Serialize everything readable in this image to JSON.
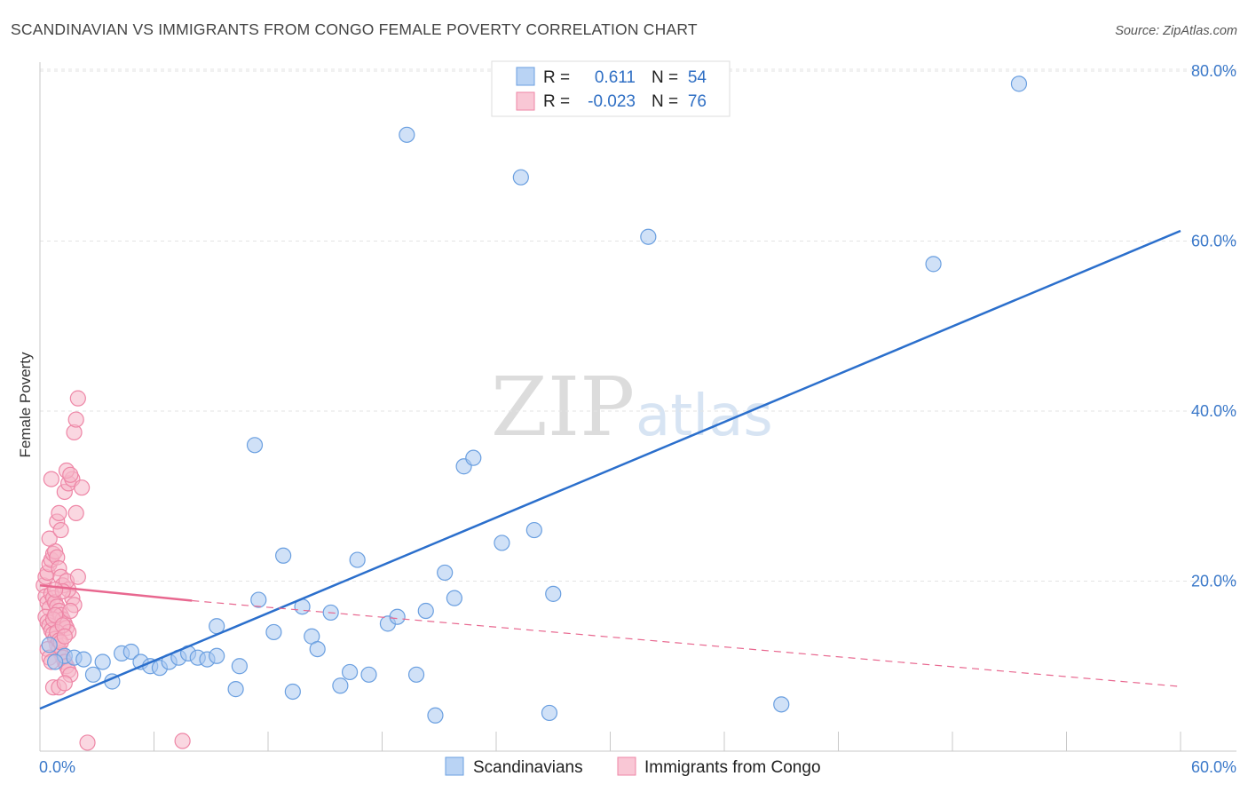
{
  "title": "SCANDINAVIAN VS IMMIGRANTS FROM CONGO FEMALE POVERTY CORRELATION CHART",
  "source": "Source: ZipAtlas.com",
  "watermark": {
    "zip": "ZIP",
    "atlas": "atlas"
  },
  "legend_top": {
    "scandinavians": {
      "r_label": "R =",
      "r_value": "0.611",
      "n_label": "N =",
      "n_value": "54"
    },
    "congo": {
      "r_label": "R =",
      "r_value": "-0.023",
      "n_label": "N =",
      "n_value": "76"
    }
  },
  "legend_bottom": {
    "scandinavians": "Scandinavians",
    "congo": "Immigrants from Congo"
  },
  "colors": {
    "blue_fill": "#a9c9f0",
    "blue_stroke": "#6a9fe0",
    "blue_line": "#2b6fcc",
    "pink_fill": "#f6b7c8",
    "pink_stroke": "#ee86a6",
    "pink_line": "#e8678f",
    "grid": "#e3e3e3",
    "axis": "#c8c8c8",
    "tick_text": "#3a78c9"
  },
  "chart_data": {
    "type": "scatter",
    "title": "SCANDINAVIAN VS IMMIGRANTS FROM CONGO FEMALE POVERTY CORRELATION CHART",
    "xlabel": "",
    "ylabel": "Female Poverty",
    "xlim": [
      0,
      60
    ],
    "ylim": [
      0,
      80
    ],
    "x_tick_labels": [
      "0.0%",
      "60.0%"
    ],
    "y_ticks": [
      20,
      40,
      60,
      80
    ],
    "y_tick_labels": [
      "20.0%",
      "40.0%",
      "60.0%",
      "80.0%"
    ],
    "grid": true,
    "series": [
      {
        "name": "Scandinavians",
        "r": 0.611,
        "n": 54,
        "trend": {
          "x": [
            0,
            60
          ],
          "y": [
            5.0,
            61.2
          ]
        },
        "points": [
          [
            0.5,
            12.5
          ],
          [
            1.3,
            11.2
          ],
          [
            1.8,
            11.0
          ],
          [
            2.3,
            10.8
          ],
          [
            2.8,
            9.0
          ],
          [
            3.3,
            10.5
          ],
          [
            3.8,
            8.2
          ],
          [
            4.3,
            11.5
          ],
          [
            4.8,
            11.7
          ],
          [
            5.3,
            10.5
          ],
          [
            5.8,
            10.0
          ],
          [
            6.3,
            9.8
          ],
          [
            6.8,
            10.5
          ],
          [
            7.3,
            11.0
          ],
          [
            7.8,
            11.5
          ],
          [
            8.3,
            11.0
          ],
          [
            8.8,
            10.8
          ],
          [
            9.3,
            11.2
          ],
          [
            9.3,
            14.7
          ],
          [
            10.3,
            7.3
          ],
          [
            10.5,
            10.0
          ],
          [
            11.3,
            36.0
          ],
          [
            11.5,
            17.8
          ],
          [
            12.3,
            14.0
          ],
          [
            12.8,
            23.0
          ],
          [
            13.3,
            7.0
          ],
          [
            13.8,
            17.0
          ],
          [
            14.3,
            13.5
          ],
          [
            14.6,
            12.0
          ],
          [
            15.3,
            16.3
          ],
          [
            15.8,
            7.7
          ],
          [
            16.3,
            9.3
          ],
          [
            16.7,
            22.5
          ],
          [
            17.3,
            9.0
          ],
          [
            18.3,
            15.0
          ],
          [
            18.8,
            15.8
          ],
          [
            19.3,
            72.5
          ],
          [
            19.8,
            9.0
          ],
          [
            20.3,
            16.5
          ],
          [
            20.8,
            4.2
          ],
          [
            21.3,
            21.0
          ],
          [
            21.8,
            18.0
          ],
          [
            22.3,
            33.5
          ],
          [
            22.8,
            34.5
          ],
          [
            24.3,
            24.5
          ],
          [
            25.3,
            67.5
          ],
          [
            26.0,
            26.0
          ],
          [
            26.8,
            4.5
          ],
          [
            27.0,
            18.5
          ],
          [
            32.0,
            60.5
          ],
          [
            39.0,
            5.5
          ],
          [
            47.0,
            57.3
          ],
          [
            51.5,
            78.5
          ],
          [
            0.8,
            10.5
          ]
        ]
      },
      {
        "name": "Immigrants from Congo",
        "r": -0.023,
        "n": 76,
        "trend_solid": {
          "x": [
            0,
            8.0
          ],
          "y": [
            19.5,
            17.7
          ]
        },
        "trend_dashed": {
          "x": [
            8.0,
            60
          ],
          "y": [
            17.7,
            7.6
          ]
        },
        "points": [
          [
            0.2,
            19.5
          ],
          [
            0.3,
            18.2
          ],
          [
            0.4,
            17.5
          ],
          [
            0.5,
            16.8
          ],
          [
            0.3,
            15.8
          ],
          [
            0.4,
            15.2
          ],
          [
            0.5,
            14.8
          ],
          [
            0.6,
            14.2
          ],
          [
            0.7,
            13.8
          ],
          [
            0.8,
            13.2
          ],
          [
            0.3,
            20.5
          ],
          [
            0.4,
            21.0
          ],
          [
            0.5,
            22.0
          ],
          [
            0.6,
            22.5
          ],
          [
            0.7,
            23.2
          ],
          [
            0.8,
            23.5
          ],
          [
            0.9,
            22.8
          ],
          [
            1.0,
            21.5
          ],
          [
            1.1,
            20.5
          ],
          [
            1.2,
            19.5
          ],
          [
            0.6,
            18.5
          ],
          [
            0.7,
            18.0
          ],
          [
            0.8,
            17.5
          ],
          [
            0.9,
            17.0
          ],
          [
            1.0,
            16.5
          ],
          [
            1.1,
            16.0
          ],
          [
            1.2,
            15.5
          ],
          [
            1.3,
            15.0
          ],
          [
            1.4,
            14.5
          ],
          [
            1.5,
            14.0
          ],
          [
            0.9,
            12.5
          ],
          [
            1.0,
            12.0
          ],
          [
            1.1,
            11.5
          ],
          [
            1.2,
            11.0
          ],
          [
            1.3,
            10.5
          ],
          [
            1.4,
            10.0
          ],
          [
            1.5,
            9.5
          ],
          [
            1.6,
            9.0
          ],
          [
            0.7,
            7.5
          ],
          [
            1.0,
            7.5
          ],
          [
            0.9,
            27.0
          ],
          [
            1.0,
            28.0
          ],
          [
            1.3,
            30.5
          ],
          [
            1.5,
            31.5
          ],
          [
            1.7,
            32.0
          ],
          [
            1.4,
            33.0
          ],
          [
            1.6,
            32.5
          ],
          [
            0.6,
            32.0
          ],
          [
            1.9,
            28.0
          ],
          [
            2.2,
            31.0
          ],
          [
            1.8,
            37.5
          ],
          [
            1.9,
            39.0
          ],
          [
            2.0,
            41.5
          ],
          [
            1.7,
            18.0
          ],
          [
            1.8,
            17.2
          ],
          [
            1.6,
            16.5
          ],
          [
            1.5,
            19.0
          ],
          [
            1.4,
            20.0
          ],
          [
            0.5,
            25.0
          ],
          [
            1.1,
            26.0
          ],
          [
            2.0,
            20.5
          ],
          [
            1.2,
            18.8
          ],
          [
            0.8,
            19.0
          ],
          [
            0.4,
            12.0
          ],
          [
            0.5,
            11.0
          ],
          [
            0.6,
            10.5
          ],
          [
            0.7,
            15.5
          ],
          [
            0.8,
            16.0
          ],
          [
            0.9,
            14.0
          ],
          [
            1.0,
            13.0
          ],
          [
            1.1,
            12.8
          ],
          [
            1.2,
            14.8
          ],
          [
            1.3,
            13.5
          ],
          [
            2.5,
            1.0
          ],
          [
            7.5,
            1.2
          ],
          [
            1.3,
            8.0
          ]
        ]
      }
    ]
  }
}
